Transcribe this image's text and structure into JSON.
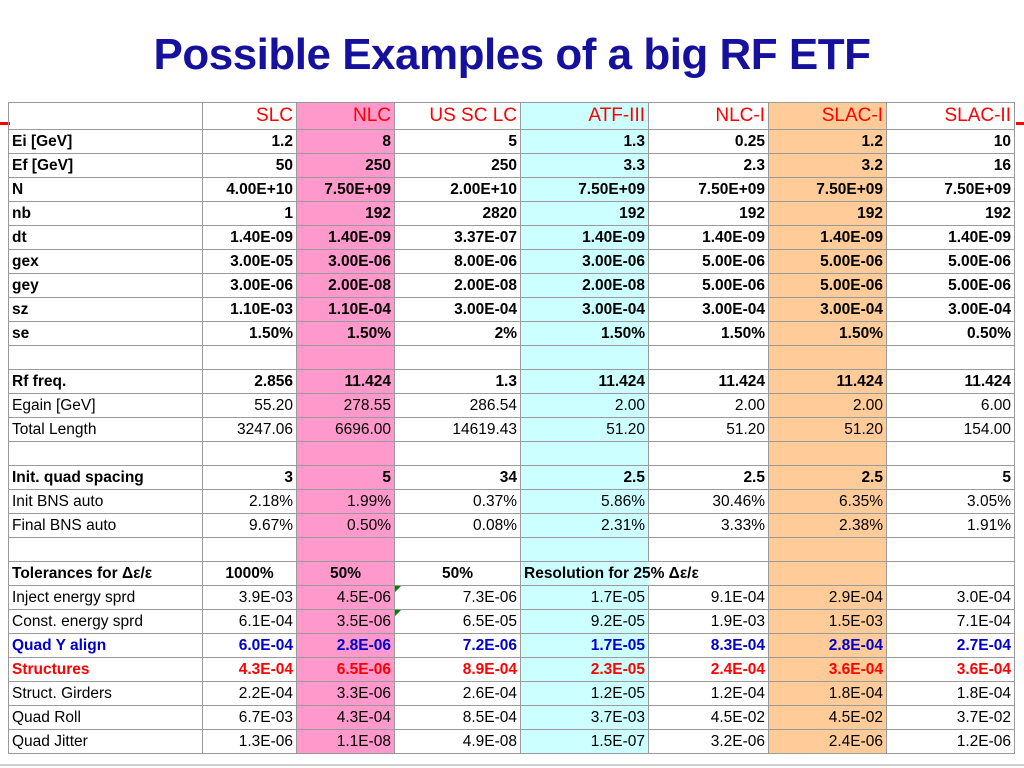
{
  "title": "Possible Examples of a big RF ETF",
  "columns": [
    "SLC",
    "NLC",
    "US SC LC",
    "ATF-III",
    "NLC-I",
    "SLAC-I",
    "SLAC-II"
  ],
  "rows": [
    {
      "label": "Ei [GeV]",
      "values": [
        "1.2",
        "8",
        "5",
        "1.3",
        "0.25",
        "1.2",
        "10"
      ]
    },
    {
      "label": "Ef [GeV]",
      "values": [
        "50",
        "250",
        "250",
        "3.3",
        "2.3",
        "3.2",
        "16"
      ]
    },
    {
      "label": "N",
      "values": [
        "4.00E+10",
        "7.50E+09",
        "2.00E+10",
        "7.50E+09",
        "7.50E+09",
        "7.50E+09",
        "7.50E+09"
      ]
    },
    {
      "label": "nb",
      "values": [
        "1",
        "192",
        "2820",
        "192",
        "192",
        "192",
        "192"
      ]
    },
    {
      "label": "dt",
      "values": [
        "1.40E-09",
        "1.40E-09",
        "3.37E-07",
        "1.40E-09",
        "1.40E-09",
        "1.40E-09",
        "1.40E-09"
      ]
    },
    {
      "label": "gex",
      "values": [
        "3.00E-05",
        "3.00E-06",
        "8.00E-06",
        "3.00E-06",
        "5.00E-06",
        "5.00E-06",
        "5.00E-06"
      ]
    },
    {
      "label": "gey",
      "values": [
        "3.00E-06",
        "2.00E-08",
        "2.00E-08",
        "2.00E-08",
        "5.00E-06",
        "5.00E-06",
        "5.00E-06"
      ]
    },
    {
      "label": "sz",
      "values": [
        "1.10E-03",
        "1.10E-04",
        "3.00E-04",
        "3.00E-04",
        "3.00E-04",
        "3.00E-04",
        "3.00E-04"
      ]
    },
    {
      "label": "se",
      "values": [
        "1.50%",
        "1.50%",
        "2%",
        "1.50%",
        "1.50%",
        "1.50%",
        "0.50%"
      ]
    },
    {
      "label": "Rf freq.",
      "values": [
        "2.856",
        "11.424",
        "1.3",
        "11.424",
        "11.424",
        "11.424",
        "11.424"
      ]
    },
    {
      "label": "Egain [GeV]",
      "values": [
        "55.20",
        "278.55",
        "286.54",
        "2.00",
        "2.00",
        "2.00",
        "6.00"
      ]
    },
    {
      "label": "Total Length",
      "values": [
        "3247.06",
        "6696.00",
        "14619.43",
        "51.20",
        "51.20",
        "51.20",
        "154.00"
      ]
    },
    {
      "label": "Init. quad spacing",
      "values": [
        "3",
        "5",
        "34",
        "2.5",
        "2.5",
        "2.5",
        "5"
      ]
    },
    {
      "label": "Init BNS auto",
      "values": [
        "2.18%",
        "1.99%",
        "0.37%",
        "5.86%",
        "30.46%",
        "6.35%",
        "3.05%"
      ]
    },
    {
      "label": "Final BNS auto",
      "values": [
        "9.67%",
        "0.50%",
        "0.08%",
        "2.31%",
        "3.33%",
        "2.38%",
        "1.91%"
      ]
    },
    {
      "label": "Tolerances for Δε/ε",
      "values": [
        "1000%",
        "50%",
        "50%"
      ],
      "note": "Resolution for 25% Δε/ε"
    },
    {
      "label": "Inject energy sprd",
      "values": [
        "3.9E-03",
        "4.5E-06",
        "7.3E-06",
        "1.7E-05",
        "9.1E-04",
        "2.9E-04",
        "3.0E-04"
      ]
    },
    {
      "label": "Const. energy sprd",
      "values": [
        "6.1E-04",
        "3.5E-06",
        "6.5E-05",
        "9.2E-05",
        "1.9E-03",
        "1.5E-03",
        "7.1E-04"
      ]
    },
    {
      "label": "Quad Y align",
      "values": [
        "6.0E-04",
        "2.8E-06",
        "7.2E-06",
        "1.7E-05",
        "8.3E-04",
        "2.8E-04",
        "2.7E-04"
      ]
    },
    {
      "label": "Structures",
      "values": [
        "4.3E-04",
        "6.5E-06",
        "8.9E-04",
        "2.3E-05",
        "2.4E-04",
        "3.6E-04",
        "3.6E-04"
      ]
    },
    {
      "label": "Struct. Girders",
      "values": [
        "2.2E-04",
        "3.3E-06",
        "2.6E-04",
        "1.2E-05",
        "1.2E-04",
        "1.8E-04",
        "1.8E-04"
      ]
    },
    {
      "label": "Quad Roll",
      "values": [
        "6.7E-03",
        "4.3E-04",
        "8.5E-04",
        "3.7E-03",
        "4.5E-02",
        "4.5E-02",
        "3.7E-02"
      ]
    },
    {
      "label": "Quad Jitter",
      "values": [
        "1.3E-06",
        "1.1E-08",
        "4.9E-08",
        "1.5E-07",
        "3.2E-06",
        "2.4E-06",
        "1.2E-06"
      ]
    }
  ],
  "colors": {
    "title": "#16119c",
    "header": "#ff0000",
    "nlc_column": "#ff99cc",
    "atf_column": "#ccffff",
    "slac1_column": "#ffcc99",
    "quad_y_align": "#0000cc",
    "structures": "#ff0000"
  }
}
